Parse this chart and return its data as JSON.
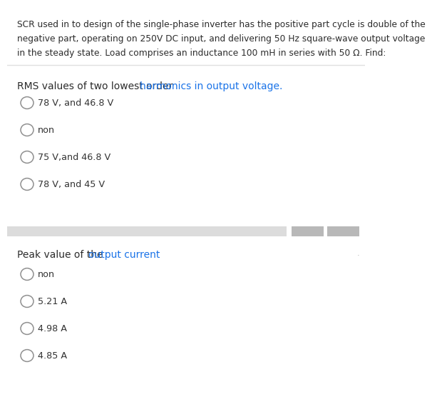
{
  "bg_color": "#ffffff",
  "header_line1": "SCR used in to design of the single-phase inverter has the positive part cycle is double of the",
  "header_line2": "negative part, operating on 250V DC input, and delivering 50 Hz square-wave output voltage",
  "header_line3": "in the steady state. Load comprises an inductance 100 mH in series with 50 Ω. Find:",
  "separator_color": "#e0e0e0",
  "q1_text_black": "RMS values of two lowest order ",
  "q1_text_blue": "harmonics in output voltage.",
  "text_black": "#2c2c2c",
  "text_blue": "#1a73e8",
  "q1_options": [
    "78 V, and 46.8 V",
    "non",
    "75 V,and 46.8 V",
    "78 V, and 45 V"
  ],
  "q2_text_black": "Peak value of the ",
  "q2_text_blue": "output current",
  "q2_options": [
    "non",
    "5.21 A",
    "4.98 A",
    "4.85 A"
  ],
  "option_text_color": "#333333",
  "circle_edge_color": "#909090",
  "circle_fill_color": "#ffffff",
  "bar_color_main": "#dcdcdc",
  "bar_color_dark": "#b8b8b8",
  "header_fontsize": 8.8,
  "q_fontsize": 10.0,
  "opt_fontsize": 9.2
}
